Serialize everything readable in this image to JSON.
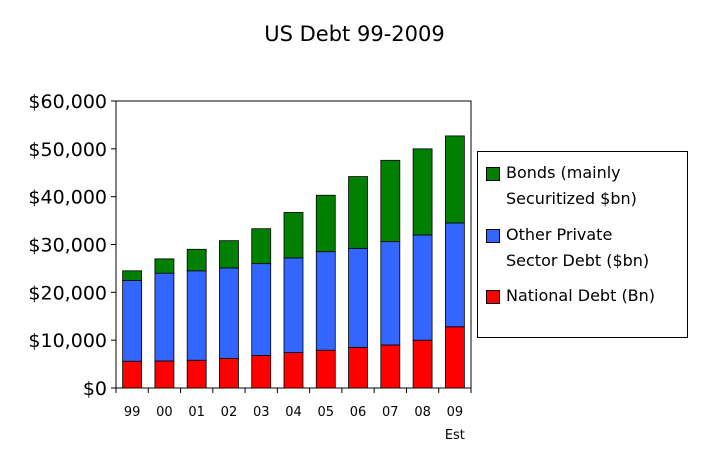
{
  "chart_data": {
    "type": "bar",
    "stacked": true,
    "title": "US Debt 99-2009",
    "categories": [
      "99",
      "00",
      "01",
      "02",
      "03",
      "04",
      "05",
      "06",
      "07",
      "08",
      "09"
    ],
    "category_sublabels": [
      "",
      "",
      "",
      "",
      "",
      "",
      "",
      "",
      "",
      "",
      "Est"
    ],
    "ylim": [
      0,
      60000
    ],
    "yticks": [
      0,
      10000,
      20000,
      30000,
      40000,
      50000,
      60000
    ],
    "ytick_labels": [
      "$0",
      "$10,000",
      "$20,000",
      "$30,000",
      "$40,000",
      "$50,000",
      "$60,000"
    ],
    "grid": false,
    "legend_position": "right",
    "series": [
      {
        "name": "National Debt (Bn)",
        "color": "#ff0000",
        "values": [
          5600,
          5650,
          5800,
          6200,
          6800,
          7400,
          7900,
          8500,
          9000,
          10000,
          12800
        ]
      },
      {
        "name": "Other Private Sector Debt ($bn)",
        "color": "#3366ff",
        "values": [
          16900,
          18350,
          18700,
          18900,
          19200,
          19800,
          20600,
          20700,
          21600,
          22000,
          21700
        ]
      },
      {
        "name": "Bonds (mainly Securitized $bn)",
        "color": "#008000",
        "values": [
          2000,
          3000,
          4500,
          5700,
          7300,
          9500,
          11800,
          15000,
          17000,
          18000,
          18200
        ]
      }
    ]
  }
}
